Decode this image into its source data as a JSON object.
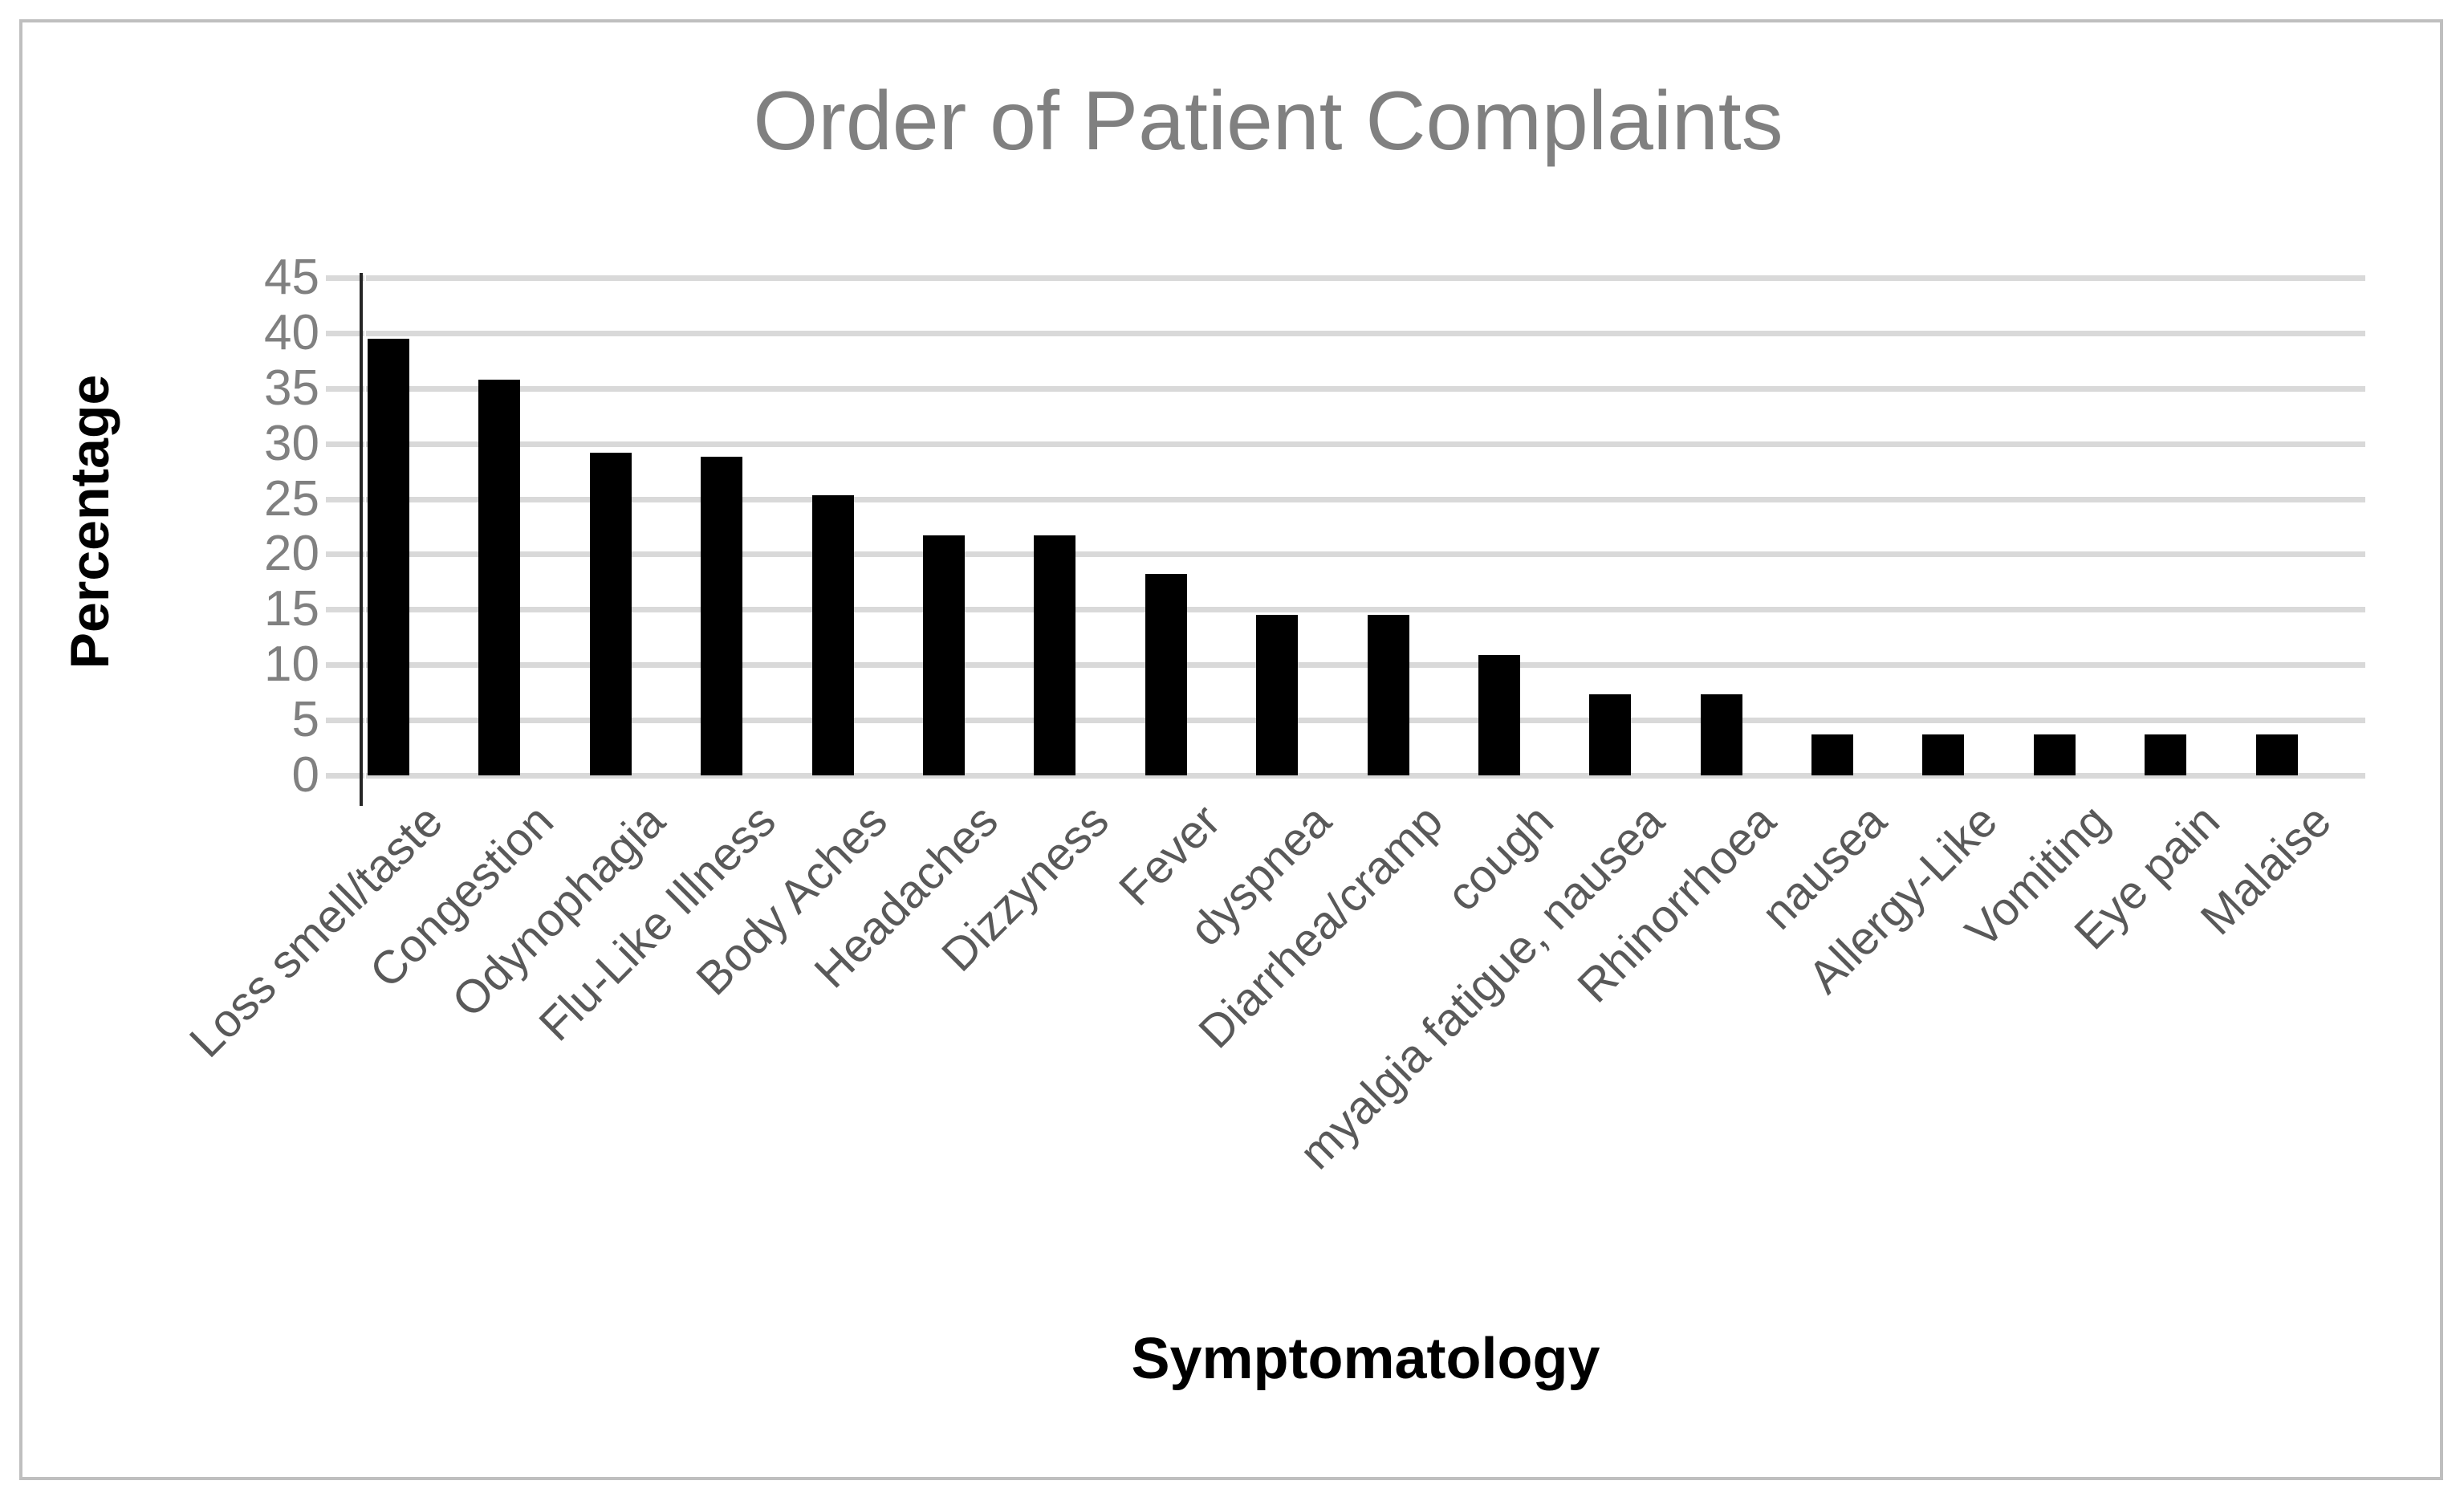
{
  "page": {
    "background": "#ffffff",
    "frame_border_color": "#bfbfbf"
  },
  "chart_data": {
    "type": "bar",
    "title": "Order of Patient Complaints",
    "xlabel": "Symptomatology",
    "ylabel": "Percentage",
    "categories": [
      "Loss smell/taste",
      "Congestion",
      "Odynophagia",
      "Flu-Like Illness",
      "Body Aches",
      "Headaches",
      "Dizzyness",
      "Fever",
      "dyspnea",
      "Diarrhea/cramp",
      "cough",
      "myalgia fatigue, nausea",
      "Rhinorrhoea",
      "nausea",
      "Allergy-Like",
      "Vomiting",
      "Eye pain",
      "Malaise"
    ],
    "values": [
      39.5,
      35.8,
      29.2,
      28.8,
      25.3,
      21.7,
      21.7,
      18.2,
      14.5,
      14.5,
      10.9,
      7.3,
      7.3,
      3.7,
      3.7,
      3.7,
      3.7,
      3.7
    ],
    "ylim": [
      0,
      45
    ],
    "ytick_step": 5,
    "yticks": [
      0,
      5,
      10,
      15,
      20,
      25,
      30,
      35,
      40,
      45
    ],
    "grid": true,
    "legend": "none",
    "bar_color": "#000000",
    "gridline_color": "#d9d9d9",
    "axis_line_color": "#262626",
    "title_color": "#808080",
    "ytick_label_color": "#808080",
    "category_label_color": "#595959"
  }
}
